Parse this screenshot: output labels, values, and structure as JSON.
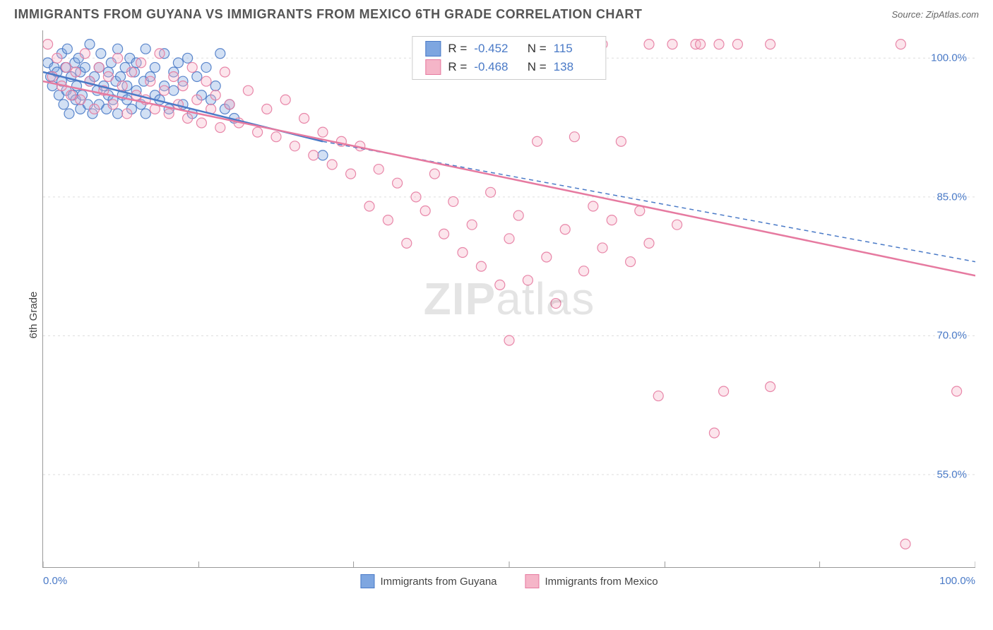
{
  "title": "IMMIGRANTS FROM GUYANA VS IMMIGRANTS FROM MEXICO 6TH GRADE CORRELATION CHART",
  "source": "Source: ZipAtlas.com",
  "ylabel": "6th Grade",
  "watermark_strong": "ZIP",
  "watermark_light": "atlas",
  "chart": {
    "type": "scatter_with_regression",
    "background_color": "#ffffff",
    "grid_color": "#dddddd",
    "grid_dash": "3,4",
    "axis_line_color": "#999999",
    "tick_label_color": "#4a7ac7",
    "tick_fontsize": 15,
    "marker_radius": 7,
    "marker_fill_opacity": 0.35,
    "marker_stroke_opacity": 0.9,
    "xlim": [
      0,
      100
    ],
    "ylim": [
      45,
      103
    ],
    "yticks": [
      55.0,
      70.0,
      85.0,
      100.0
    ],
    "ytick_labels": [
      "55.0%",
      "70.0%",
      "85.0%",
      "100.0%"
    ],
    "xticks": [
      0,
      16.7,
      33.3,
      50,
      66.7,
      83.3,
      100
    ],
    "x_label_min": "0.0%",
    "x_label_max": "100.0%",
    "series": [
      {
        "id": "guyana",
        "label": "Immigrants from Guyana",
        "color_stroke": "#4a7ac7",
        "color_fill": "#7ea6e0",
        "R": "-0.452",
        "N": "115",
        "regression": {
          "x1": 0,
          "y1": 98.5,
          "x2": 30,
          "y2": 91.0,
          "solid_until_x": 30,
          "dash_to_x": 100,
          "dash_to_y": 78.0
        },
        "points": [
          [
            0.5,
            99.5
          ],
          [
            0.8,
            98.0
          ],
          [
            1.0,
            97.0
          ],
          [
            1.2,
            99.0
          ],
          [
            1.5,
            98.5
          ],
          [
            1.7,
            96.0
          ],
          [
            2.0,
            100.5
          ],
          [
            2.0,
            97.5
          ],
          [
            2.2,
            95.0
          ],
          [
            2.4,
            99.0
          ],
          [
            2.5,
            96.5
          ],
          [
            2.6,
            101.0
          ],
          [
            2.8,
            94.0
          ],
          [
            3.0,
            98.0
          ],
          [
            3.2,
            96.0
          ],
          [
            3.4,
            99.5
          ],
          [
            3.5,
            95.5
          ],
          [
            3.6,
            97.0
          ],
          [
            3.8,
            100.0
          ],
          [
            4.0,
            94.5
          ],
          [
            4.0,
            98.5
          ],
          [
            4.2,
            96.0
          ],
          [
            4.5,
            99.0
          ],
          [
            4.8,
            95.0
          ],
          [
            5.0,
            97.5
          ],
          [
            5.0,
            101.5
          ],
          [
            5.3,
            94.0
          ],
          [
            5.5,
            98.0
          ],
          [
            5.8,
            96.5
          ],
          [
            6.0,
            99.0
          ],
          [
            6.0,
            95.0
          ],
          [
            6.2,
            100.5
          ],
          [
            6.5,
            97.0
          ],
          [
            6.8,
            94.5
          ],
          [
            7.0,
            98.5
          ],
          [
            7.0,
            96.0
          ],
          [
            7.3,
            99.5
          ],
          [
            7.5,
            95.5
          ],
          [
            7.8,
            97.5
          ],
          [
            8.0,
            101.0
          ],
          [
            8.0,
            94.0
          ],
          [
            8.3,
            98.0
          ],
          [
            8.5,
            96.0
          ],
          [
            8.8,
            99.0
          ],
          [
            9.0,
            95.5
          ],
          [
            9.0,
            97.0
          ],
          [
            9.3,
            100.0
          ],
          [
            9.5,
            94.5
          ],
          [
            9.8,
            98.5
          ],
          [
            10.0,
            96.5
          ],
          [
            10.0,
            99.5
          ],
          [
            10.5,
            95.0
          ],
          [
            10.8,
            97.5
          ],
          [
            11.0,
            101.0
          ],
          [
            11.0,
            94.0
          ],
          [
            11.5,
            98.0
          ],
          [
            12.0,
            96.0
          ],
          [
            12.0,
            99.0
          ],
          [
            12.5,
            95.5
          ],
          [
            13.0,
            97.0
          ],
          [
            13.0,
            100.5
          ],
          [
            13.5,
            94.5
          ],
          [
            14.0,
            98.5
          ],
          [
            14.0,
            96.5
          ],
          [
            14.5,
            99.5
          ],
          [
            15.0,
            95.0
          ],
          [
            15.0,
            97.5
          ],
          [
            15.5,
            100.0
          ],
          [
            16.0,
            94.0
          ],
          [
            16.5,
            98.0
          ],
          [
            17.0,
            96.0
          ],
          [
            17.5,
            99.0
          ],
          [
            18.0,
            95.5
          ],
          [
            18.5,
            97.0
          ],
          [
            19.0,
            100.5
          ],
          [
            19.5,
            94.5
          ],
          [
            20.0,
            95.0
          ],
          [
            20.5,
            93.5
          ],
          [
            30.0,
            89.5
          ]
        ]
      },
      {
        "id": "mexico",
        "label": "Immigrants from Mexico",
        "color_stroke": "#e67aa0",
        "color_fill": "#f5b5c8",
        "R": "-0.468",
        "N": "138",
        "regression": {
          "x1": 0,
          "y1": 97.5,
          "x2": 100,
          "y2": 76.5,
          "solid_until_x": 100
        },
        "points": [
          [
            0.5,
            101.5
          ],
          [
            1.0,
            98.0
          ],
          [
            1.5,
            100.0
          ],
          [
            2.0,
            97.0
          ],
          [
            2.5,
            99.0
          ],
          [
            3.0,
            96.0
          ],
          [
            3.5,
            98.5
          ],
          [
            4.0,
            95.5
          ],
          [
            4.5,
            100.5
          ],
          [
            5.0,
            97.5
          ],
          [
            5.5,
            94.5
          ],
          [
            6.0,
            99.0
          ],
          [
            6.5,
            96.5
          ],
          [
            7.0,
            98.0
          ],
          [
            7.5,
            95.0
          ],
          [
            8.0,
            100.0
          ],
          [
            8.5,
            97.0
          ],
          [
            9.0,
            94.0
          ],
          [
            9.5,
            98.5
          ],
          [
            10.0,
            96.0
          ],
          [
            10.5,
            99.5
          ],
          [
            11.0,
            95.5
          ],
          [
            11.5,
            97.5
          ],
          [
            12.0,
            94.5
          ],
          [
            12.5,
            100.5
          ],
          [
            13.0,
            96.5
          ],
          [
            13.5,
            94.0
          ],
          [
            14.0,
            98.0
          ],
          [
            14.5,
            95.0
          ],
          [
            15.0,
            97.0
          ],
          [
            15.5,
            93.5
          ],
          [
            16.0,
            99.0
          ],
          [
            16.5,
            95.5
          ],
          [
            17.0,
            93.0
          ],
          [
            17.5,
            97.5
          ],
          [
            18.0,
            94.5
          ],
          [
            18.5,
            96.0
          ],
          [
            19.0,
            92.5
          ],
          [
            19.5,
            98.5
          ],
          [
            20.0,
            95.0
          ],
          [
            21.0,
            93.0
          ],
          [
            22.0,
            96.5
          ],
          [
            23.0,
            92.0
          ],
          [
            24.0,
            94.5
          ],
          [
            25.0,
            91.5
          ],
          [
            26.0,
            95.5
          ],
          [
            27.0,
            90.5
          ],
          [
            28.0,
            93.5
          ],
          [
            29.0,
            89.5
          ],
          [
            30.0,
            92.0
          ],
          [
            31.0,
            88.5
          ],
          [
            32.0,
            91.0
          ],
          [
            33.0,
            87.5
          ],
          [
            34.0,
            90.5
          ],
          [
            35.0,
            84.0
          ],
          [
            36.0,
            88.0
          ],
          [
            37.0,
            82.5
          ],
          [
            38.0,
            86.5
          ],
          [
            39.0,
            80.0
          ],
          [
            40.0,
            85.0
          ],
          [
            41.0,
            83.5
          ],
          [
            42.0,
            87.5
          ],
          [
            43.0,
            81.0
          ],
          [
            44.0,
            84.5
          ],
          [
            45.0,
            79.0
          ],
          [
            46.0,
            82.0
          ],
          [
            47.0,
            77.5
          ],
          [
            48.0,
            85.5
          ],
          [
            49.0,
            75.5
          ],
          [
            50.0,
            80.5
          ],
          [
            50.0,
            69.5
          ],
          [
            51.0,
            83.0
          ],
          [
            52.0,
            76.0
          ],
          [
            53.0,
            91.0
          ],
          [
            54.0,
            78.5
          ],
          [
            55.0,
            73.5
          ],
          [
            56.0,
            81.5
          ],
          [
            57.0,
            91.5
          ],
          [
            58.0,
            77.0
          ],
          [
            59.0,
            84.0
          ],
          [
            60.0,
            79.5
          ],
          [
            60.0,
            101.5
          ],
          [
            61.0,
            82.5
          ],
          [
            62.0,
            91.0
          ],
          [
            63.0,
            78.0
          ],
          [
            64.0,
            83.5
          ],
          [
            65.0,
            101.5
          ],
          [
            65.0,
            80.0
          ],
          [
            66.0,
            63.5
          ],
          [
            67.5,
            101.5
          ],
          [
            68.0,
            82.0
          ],
          [
            70.0,
            101.5
          ],
          [
            70.5,
            101.5
          ],
          [
            72.0,
            59.5
          ],
          [
            72.5,
            101.5
          ],
          [
            73.0,
            64.0
          ],
          [
            74.5,
            101.5
          ],
          [
            78.0,
            101.5
          ],
          [
            78.0,
            64.5
          ],
          [
            92.0,
            101.5
          ],
          [
            92.5,
            47.5
          ],
          [
            98.0,
            64.0
          ]
        ]
      }
    ],
    "legend_swatch_border": "1px"
  }
}
